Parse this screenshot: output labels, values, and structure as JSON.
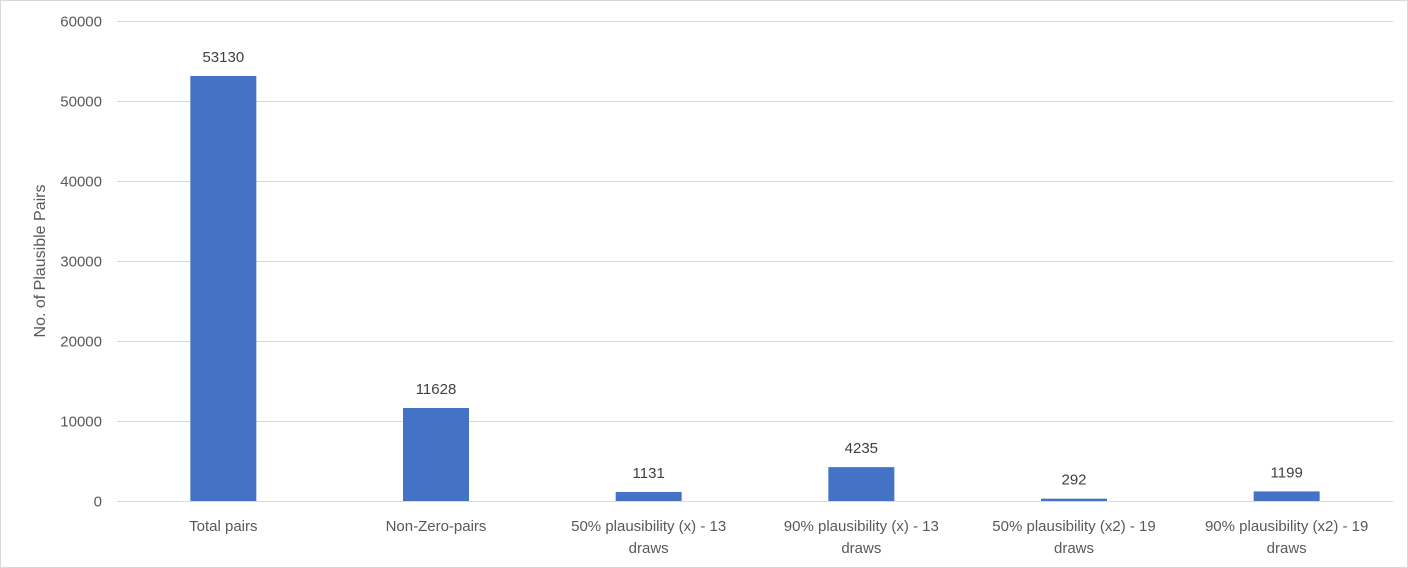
{
  "chart_data": {
    "type": "bar",
    "title": "",
    "xlabel": "",
    "ylabel": "No. of Plausible Pairs",
    "ylim": [
      0,
      60000
    ],
    "yticks": [
      0,
      10000,
      20000,
      30000,
      40000,
      50000,
      60000
    ],
    "grid": true,
    "legend": "none",
    "bar_color": "#4472C4",
    "categories": [
      [
        "Total pairs"
      ],
      [
        "Non-Zero-pairs"
      ],
      [
        "50% plausibility (x) - 13",
        "draws"
      ],
      [
        "90% plausibility (x) - 13",
        "draws"
      ],
      [
        "50% plausibility (x2) - 19",
        "draws"
      ],
      [
        "90% plausibility (x2) - 19",
        "draws"
      ]
    ],
    "values": [
      53130,
      11628,
      1131,
      4235,
      292,
      1199
    ],
    "data_labels": [
      "53130",
      "11628",
      "1131",
      "4235",
      "292",
      "1199"
    ]
  }
}
